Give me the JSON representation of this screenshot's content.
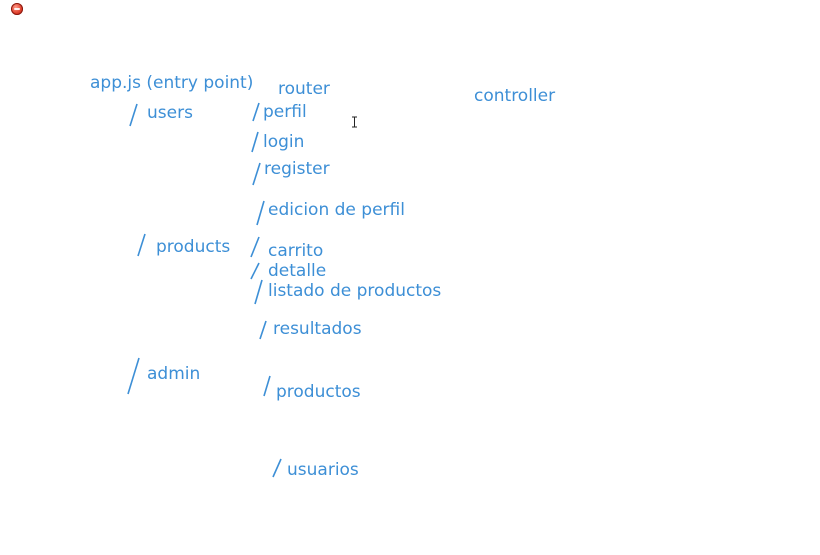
{
  "window": {
    "close_button": "close"
  },
  "colors": {
    "ink": "#3d8fd6",
    "background": "#ffffff",
    "close_button": "#e0402c"
  },
  "labels": {
    "app": "app.js (entry point)",
    "router": "router",
    "controller": "controller",
    "users": "users",
    "products": "products",
    "admin": "admin",
    "perfil": "perfil",
    "login": "login",
    "register": "register",
    "edicion": "edicion de perfil",
    "carrito": "carrito",
    "detalle": "detalle",
    "listado": "listado de productos",
    "resultados": "resultados",
    "productos": "productos",
    "usuarios": "usuarios"
  },
  "cursor": {
    "icon": "text-cursor-icon"
  }
}
